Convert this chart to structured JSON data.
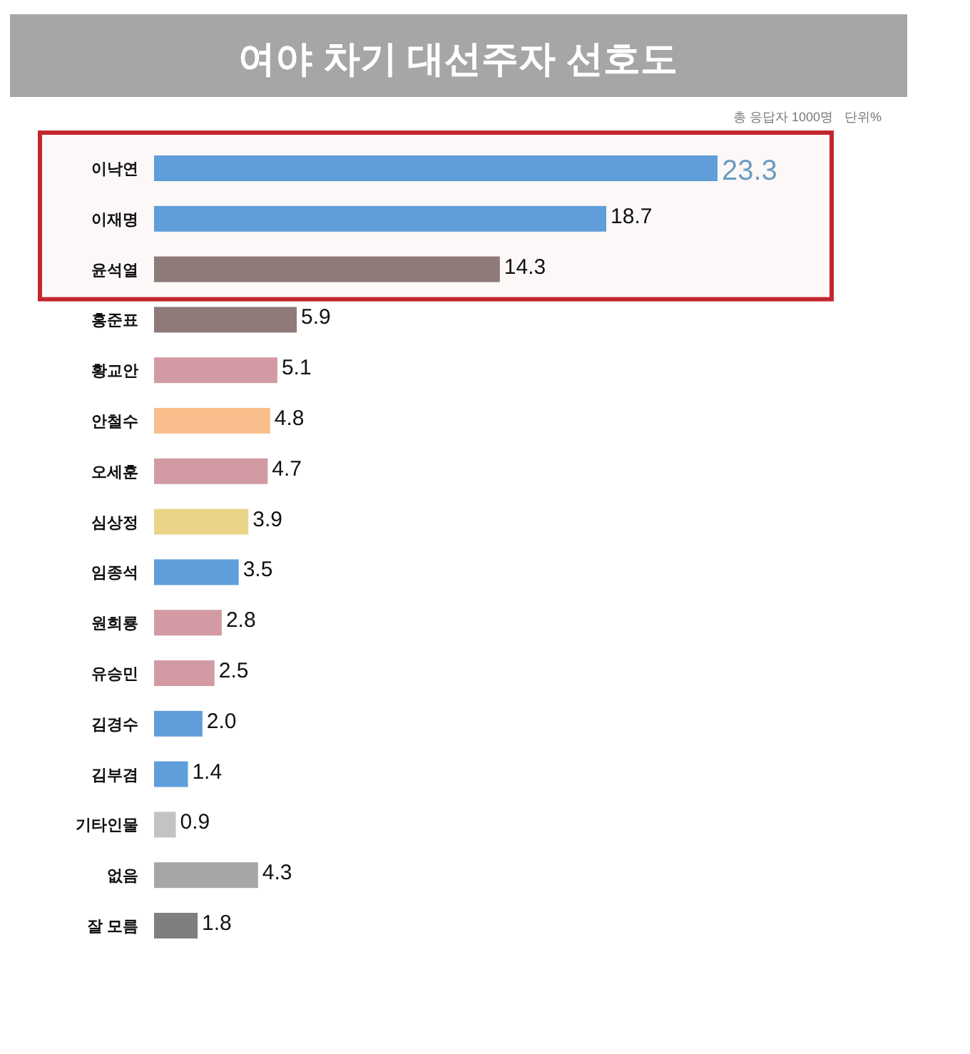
{
  "chart_data": {
    "type": "bar",
    "orientation": "horizontal",
    "title": "여야 차기 대선주자 선호도",
    "annotations": [
      "총 응답자 1000명",
      "단위%"
    ],
    "categories": [
      "이낙연",
      "이재명",
      "윤석열",
      "홍준표",
      "황교안",
      "안철수",
      "오세훈",
      "심상정",
      "임종석",
      "원희룡",
      "유승민",
      "김경수",
      "김부겸",
      "기타인물",
      "없음",
      "잘 모름"
    ],
    "values": [
      23.3,
      18.7,
      14.3,
      5.9,
      5.1,
      4.8,
      4.7,
      3.9,
      3.5,
      2.8,
      2.5,
      2.0,
      1.4,
      0.9,
      4.3,
      1.8
    ],
    "value_labels": [
      "23.3",
      "18.7",
      "14.3",
      "5.9",
      "5.1",
      "4.8",
      "4.7",
      "3.9",
      "3.5",
      "2.8",
      "2.5",
      "2.0",
      "1.4",
      "0.9",
      "4.3",
      "1.8"
    ],
    "colors": [
      "#5f9ddb",
      "#5f9ddb",
      "#8f7a7a",
      "#8f7a7a",
      "#d29ba4",
      "#f8bf8c",
      "#d29ba4",
      "#ead488",
      "#5f9ddb",
      "#d29ba4",
      "#d29ba4",
      "#5f9ddb",
      "#5f9ddb",
      "#c3c3c3",
      "#a6a6a6",
      "#7f7f7f"
    ],
    "bands": [
      {
        "axis": "y",
        "from": "이낙연",
        "to": "윤석열",
        "color": "#c4262e"
      }
    ]
  }
}
